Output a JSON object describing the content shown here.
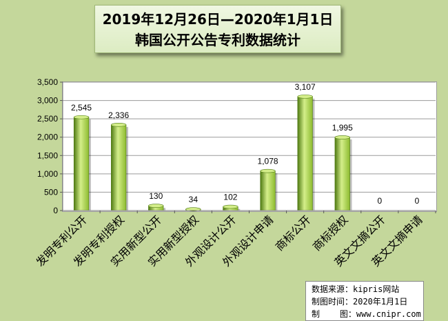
{
  "title": {
    "line1": "2019年12月26日—2020年1月1日",
    "line2": "韩国公开公告专利数据统计"
  },
  "chart_data": {
    "type": "bar",
    "categories": [
      "发明专利公开",
      "发明专利授权",
      "实用新型公开",
      "实用新型授权",
      "外观设计公开",
      "外观设计申请",
      "商标公开",
      "商标授权",
      "英文文摘公开",
      "英文文摘申请"
    ],
    "values": [
      2545,
      2336,
      130,
      34,
      102,
      1078,
      3107,
      1995,
      0,
      0
    ],
    "data_labels": [
      "2,545",
      "2,336",
      "130",
      "34",
      "102",
      "1,078",
      "3,107",
      "1,995",
      "0",
      "0"
    ],
    "ylim": [
      0,
      3500
    ],
    "yticks": [
      0,
      500,
      1000,
      1500,
      2000,
      2500,
      3000,
      3500
    ],
    "ytick_labels": [
      "0",
      "500",
      "1,000",
      "1,500",
      "2,000",
      "2,500",
      "3,000",
      "3,500"
    ],
    "grid": true,
    "bar_color": "#8dbb2f",
    "bar_highlight": "#d4ee8a",
    "bar_shadow": "#4f7a12"
  },
  "source": {
    "line1": "数据来源：kipris网站",
    "line2": "制图时间：2020年1月1日",
    "line3": "制    图：www.cnipr.com"
  }
}
